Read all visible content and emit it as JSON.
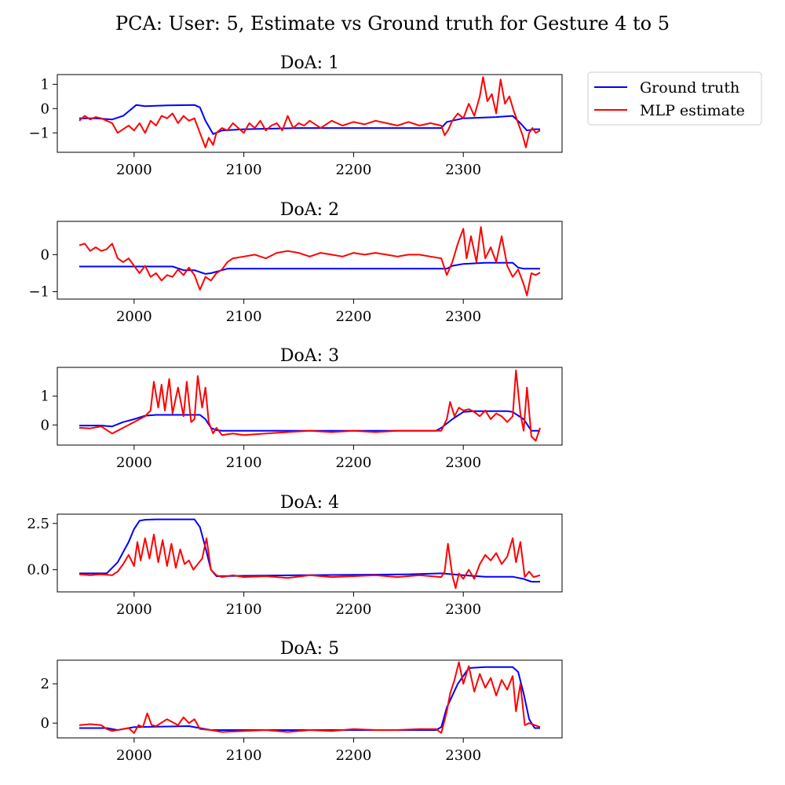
{
  "figure": {
    "suptitle": "PCA: User: 5, Estimate vs Ground truth for Gesture 4 to 5"
  },
  "legend": {
    "items": [
      {
        "label": "Ground truth",
        "color": "#0000ff"
      },
      {
        "label": "MLP estimate",
        "color": "#ff0000"
      }
    ],
    "placement": "outside-right-top"
  },
  "colors": {
    "ground_truth": "#0000ff",
    "estimate": "#ff0000",
    "axes": "#000000"
  },
  "chart_data": [
    {
      "type": "line",
      "title": "DoA: 1",
      "xlabel": "",
      "ylabel": "",
      "xlim": [
        1930,
        2390
      ],
      "ylim": [
        -1.8,
        1.4
      ],
      "xticks": [
        2000,
        2100,
        2200,
        2300
      ],
      "yticks": [
        1,
        0,
        -1
      ],
      "ytick_labels": [
        "1",
        "0",
        "−1"
      ],
      "grid": false,
      "series": [
        {
          "name": "Ground truth",
          "color": "#0000ff",
          "x": [
            1950,
            1965,
            1980,
            1990,
            1998,
            2002,
            2010,
            2030,
            2055,
            2060,
            2065,
            2072,
            2080,
            2100,
            2150,
            2200,
            2250,
            2280,
            2285,
            2300,
            2330,
            2345,
            2352,
            2358,
            2365,
            2370
          ],
          "y": [
            -0.4,
            -0.4,
            -0.45,
            -0.3,
            0.0,
            0.15,
            0.1,
            0.13,
            0.15,
            0.05,
            -0.5,
            -1.05,
            -0.9,
            -0.85,
            -0.8,
            -0.8,
            -0.8,
            -0.8,
            -0.55,
            -0.4,
            -0.35,
            -0.3,
            -0.6,
            -0.9,
            -0.85,
            -0.85
          ]
        },
        {
          "name": "MLP estimate",
          "color": "#ff0000",
          "x": [
            1950,
            1955,
            1960,
            1965,
            1970,
            1975,
            1980,
            1985,
            1990,
            1995,
            2000,
            2005,
            2010,
            2015,
            2020,
            2025,
            2030,
            2035,
            2040,
            2045,
            2050,
            2055,
            2060,
            2065,
            2068,
            2072,
            2075,
            2080,
            2085,
            2090,
            2095,
            2100,
            2105,
            2110,
            2115,
            2120,
            2125,
            2130,
            2135,
            2140,
            2145,
            2150,
            2155,
            2160,
            2170,
            2180,
            2190,
            2200,
            2210,
            2220,
            2230,
            2240,
            2250,
            2260,
            2270,
            2280,
            2283,
            2286,
            2290,
            2295,
            2300,
            2305,
            2310,
            2315,
            2318,
            2322,
            2326,
            2330,
            2334,
            2338,
            2342,
            2346,
            2350,
            2354,
            2357,
            2360,
            2363,
            2366,
            2370
          ],
          "y": [
            -0.5,
            -0.3,
            -0.45,
            -0.35,
            -0.4,
            -0.5,
            -0.6,
            -1.0,
            -0.85,
            -0.7,
            -0.9,
            -0.6,
            -1.0,
            -0.5,
            -0.7,
            -0.3,
            -0.4,
            -0.2,
            -0.6,
            -0.3,
            -0.5,
            -0.4,
            -1.0,
            -1.6,
            -1.2,
            -1.5,
            -1.0,
            -0.8,
            -0.9,
            -0.6,
            -0.8,
            -1.0,
            -0.6,
            -0.8,
            -0.5,
            -0.9,
            -0.7,
            -0.6,
            -0.9,
            -0.3,
            -0.8,
            -0.6,
            -0.7,
            -0.5,
            -0.8,
            -0.5,
            -0.7,
            -0.55,
            -0.65,
            -0.5,
            -0.6,
            -0.7,
            -0.55,
            -0.7,
            -0.6,
            -0.7,
            -1.1,
            -0.9,
            -0.5,
            -0.2,
            -0.4,
            0.2,
            -0.3,
            0.5,
            1.3,
            0.3,
            0.6,
            -0.2,
            1.2,
            0.2,
            0.5,
            -0.1,
            -0.6,
            -1.1,
            -1.6,
            -1.0,
            -0.8,
            -1.0,
            -0.9
          ]
        }
      ]
    },
    {
      "type": "line",
      "title": "DoA: 2",
      "xlabel": "",
      "ylabel": "",
      "xlim": [
        1930,
        2390
      ],
      "ylim": [
        -1.2,
        0.9
      ],
      "xticks": [
        2000,
        2100,
        2200,
        2300
      ],
      "yticks": [
        0,
        -1
      ],
      "ytick_labels": [
        "0",
        "−1"
      ],
      "grid": false,
      "series": [
        {
          "name": "Ground truth",
          "color": "#0000ff",
          "x": [
            1950,
            2000,
            2035,
            2045,
            2055,
            2065,
            2070,
            2080,
            2085,
            2100,
            2150,
            2200,
            2250,
            2285,
            2290,
            2300,
            2320,
            2345,
            2350,
            2355,
            2370
          ],
          "y": [
            -0.32,
            -0.32,
            -0.32,
            -0.42,
            -0.42,
            -0.52,
            -0.5,
            -0.42,
            -0.38,
            -0.38,
            -0.38,
            -0.38,
            -0.38,
            -0.38,
            -0.3,
            -0.25,
            -0.22,
            -0.22,
            -0.35,
            -0.38,
            -0.38
          ]
        },
        {
          "name": "MLP estimate",
          "color": "#ff0000",
          "x": [
            1950,
            1955,
            1960,
            1965,
            1970,
            1975,
            1980,
            1985,
            1990,
            1995,
            2000,
            2005,
            2010,
            2015,
            2020,
            2025,
            2030,
            2035,
            2040,
            2045,
            2050,
            2055,
            2060,
            2065,
            2070,
            2075,
            2080,
            2085,
            2090,
            2100,
            2110,
            2120,
            2130,
            2140,
            2150,
            2160,
            2170,
            2180,
            2190,
            2200,
            2210,
            2220,
            2230,
            2240,
            2250,
            2260,
            2270,
            2280,
            2285,
            2290,
            2295,
            2300,
            2303,
            2307,
            2312,
            2316,
            2320,
            2325,
            2330,
            2335,
            2340,
            2345,
            2350,
            2355,
            2358,
            2362,
            2366,
            2370
          ],
          "y": [
            0.25,
            0.3,
            0.1,
            0.2,
            0.1,
            0.15,
            0.3,
            -0.1,
            -0.2,
            -0.1,
            -0.3,
            -0.5,
            -0.3,
            -0.6,
            -0.5,
            -0.7,
            -0.55,
            -0.6,
            -0.4,
            -0.55,
            -0.35,
            -0.55,
            -0.95,
            -0.6,
            -0.7,
            -0.5,
            -0.4,
            -0.2,
            -0.1,
            -0.05,
            0.0,
            -0.1,
            0.05,
            0.1,
            0.05,
            -0.05,
            0.05,
            0.0,
            -0.05,
            0.05,
            0.0,
            0.05,
            0.0,
            -0.05,
            0.0,
            0.0,
            -0.05,
            -0.1,
            -0.55,
            -0.2,
            0.3,
            0.7,
            -0.1,
            0.5,
            -0.2,
            0.75,
            -0.1,
            0.2,
            -0.2,
            0.5,
            -0.3,
            -0.6,
            -0.4,
            -0.8,
            -1.1,
            -0.5,
            -0.55,
            -0.48
          ]
        }
      ]
    },
    {
      "type": "line",
      "title": "DoA: 3",
      "xlabel": "",
      "ylabel": "",
      "xlim": [
        1930,
        2390
      ],
      "ylim": [
        -0.7,
        2.0
      ],
      "xticks": [
        2000,
        2100,
        2200,
        2300
      ],
      "yticks": [
        1,
        0
      ],
      "ytick_labels": [
        "1",
        "0"
      ],
      "grid": false,
      "series": [
        {
          "name": "Ground truth",
          "color": "#0000ff",
          "x": [
            1950,
            1970,
            1980,
            1990,
            2000,
            2010,
            2020,
            2040,
            2060,
            2065,
            2070,
            2075,
            2080,
            2100,
            2150,
            2200,
            2250,
            2275,
            2280,
            2290,
            2300,
            2310,
            2340,
            2345,
            2355,
            2362,
            2370
          ],
          "y": [
            -0.02,
            -0.02,
            -0.05,
            0.1,
            0.2,
            0.32,
            0.35,
            0.35,
            0.35,
            0.2,
            -0.1,
            -0.18,
            -0.2,
            -0.2,
            -0.2,
            -0.2,
            -0.2,
            -0.2,
            -0.1,
            0.2,
            0.45,
            0.48,
            0.48,
            0.45,
            0.2,
            -0.2,
            -0.2
          ]
        },
        {
          "name": "MLP estimate",
          "color": "#ff0000",
          "x": [
            1950,
            1960,
            1970,
            1980,
            1985,
            1990,
            1995,
            2000,
            2005,
            2010,
            2015,
            2018,
            2022,
            2025,
            2028,
            2032,
            2035,
            2040,
            2045,
            2048,
            2052,
            2055,
            2058,
            2062,
            2065,
            2068,
            2072,
            2075,
            2080,
            2090,
            2100,
            2120,
            2140,
            2160,
            2180,
            2200,
            2220,
            2240,
            2260,
            2280,
            2285,
            2288,
            2292,
            2296,
            2300,
            2305,
            2310,
            2315,
            2320,
            2325,
            2330,
            2335,
            2340,
            2345,
            2348,
            2352,
            2355,
            2358,
            2362,
            2366,
            2370
          ],
          "y": [
            -0.1,
            -0.12,
            -0.05,
            -0.3,
            -0.2,
            -0.1,
            0.0,
            0.1,
            0.2,
            0.3,
            0.5,
            1.5,
            0.6,
            1.4,
            0.5,
            1.6,
            0.4,
            1.3,
            0.3,
            1.5,
            0.1,
            0.2,
            1.7,
            0.6,
            1.3,
            0.1,
            -0.3,
            -0.1,
            -0.35,
            -0.3,
            -0.35,
            -0.3,
            -0.25,
            -0.2,
            -0.25,
            -0.2,
            -0.25,
            -0.2,
            -0.2,
            -0.2,
            0.2,
            0.8,
            0.3,
            0.6,
            0.5,
            0.55,
            0.45,
            0.3,
            0.5,
            0.2,
            0.4,
            0.3,
            0.1,
            0.3,
            1.9,
            0.4,
            -0.2,
            1.3,
            -0.4,
            -0.55,
            -0.1
          ]
        }
      ]
    },
    {
      "type": "line",
      "title": "DoA: 4",
      "xlabel": "",
      "ylabel": "",
      "xlim": [
        1930,
        2390
      ],
      "ylim": [
        -1.2,
        3.0
      ],
      "xticks": [
        2000,
        2100,
        2200,
        2300
      ],
      "yticks": [
        2.5,
        0.0
      ],
      "ytick_labels": [
        "2.5",
        "0.0"
      ],
      "grid": false,
      "series": [
        {
          "name": "Ground truth",
          "color": "#0000ff",
          "x": [
            1950,
            1975,
            1985,
            1995,
            2000,
            2005,
            2010,
            2020,
            2055,
            2060,
            2065,
            2070,
            2075,
            2100,
            2150,
            2200,
            2250,
            2280,
            2300,
            2320,
            2345,
            2355,
            2362,
            2370
          ],
          "y": [
            -0.2,
            -0.2,
            0.4,
            1.5,
            2.2,
            2.65,
            2.7,
            2.72,
            2.72,
            2.3,
            1.2,
            0.0,
            -0.35,
            -0.33,
            -0.3,
            -0.28,
            -0.25,
            -0.2,
            -0.3,
            -0.38,
            -0.38,
            -0.5,
            -0.65,
            -0.65
          ]
        },
        {
          "name": "MLP estimate",
          "color": "#ff0000",
          "x": [
            1950,
            1960,
            1970,
            1980,
            1985,
            1990,
            1995,
            2000,
            2003,
            2006,
            2010,
            2014,
            2018,
            2022,
            2026,
            2030,
            2034,
            2038,
            2042,
            2046,
            2050,
            2054,
            2058,
            2062,
            2066,
            2070,
            2075,
            2080,
            2090,
            2100,
            2120,
            2140,
            2160,
            2180,
            2200,
            2220,
            2240,
            2260,
            2280,
            2283,
            2286,
            2290,
            2293,
            2296,
            2300,
            2305,
            2310,
            2315,
            2320,
            2325,
            2330,
            2335,
            2340,
            2345,
            2348,
            2352,
            2356,
            2360,
            2364,
            2370
          ],
          "y": [
            -0.25,
            -0.3,
            -0.25,
            -0.3,
            -0.1,
            0.3,
            0.8,
            0.2,
            1.5,
            0.5,
            1.7,
            0.6,
            1.9,
            0.4,
            1.6,
            0.2,
            1.4,
            0.1,
            1.1,
            0.3,
            0.5,
            0.0,
            0.3,
            0.6,
            1.7,
            0.0,
            -0.3,
            -0.4,
            -0.3,
            -0.4,
            -0.35,
            -0.45,
            -0.3,
            -0.4,
            -0.35,
            -0.3,
            -0.4,
            -0.3,
            -0.4,
            -0.1,
            1.4,
            -0.3,
            -1.0,
            -0.2,
            -0.5,
            0.0,
            -0.5,
            0.3,
            0.8,
            0.5,
            0.9,
            0.3,
            0.7,
            1.7,
            0.4,
            1.5,
            -0.4,
            -0.1,
            -0.4,
            -0.3
          ]
        }
      ]
    },
    {
      "type": "line",
      "title": "DoA: 5",
      "xlabel": "",
      "ylabel": "",
      "xlim": [
        1930,
        2390
      ],
      "ylim": [
        -0.75,
        3.2
      ],
      "xticks": [
        2000,
        2100,
        2200,
        2300
      ],
      "yticks": [
        2,
        0
      ],
      "ytick_labels": [
        "2",
        "0"
      ],
      "grid": false,
      "series": [
        {
          "name": "Ground truth",
          "color": "#0000ff",
          "x": [
            1950,
            1975,
            1985,
            2000,
            2050,
            2070,
            2100,
            2150,
            2200,
            2250,
            2275,
            2280,
            2285,
            2295,
            2305,
            2320,
            2345,
            2350,
            2355,
            2360,
            2365,
            2370
          ],
          "y": [
            -0.25,
            -0.25,
            -0.35,
            -0.2,
            -0.15,
            -0.35,
            -0.35,
            -0.35,
            -0.35,
            -0.35,
            -0.35,
            -0.2,
            0.8,
            2.0,
            2.8,
            2.85,
            2.85,
            2.6,
            1.5,
            0.2,
            -0.25,
            -0.25
          ]
        },
        {
          "name": "MLP estimate",
          "color": "#ff0000",
          "x": [
            1950,
            1960,
            1970,
            1975,
            1980,
            1990,
            1995,
            2000,
            2004,
            2008,
            2012,
            2016,
            2020,
            2030,
            2040,
            2045,
            2050,
            2055,
            2060,
            2070,
            2080,
            2100,
            2120,
            2140,
            2160,
            2180,
            2200,
            2220,
            2240,
            2260,
            2275,
            2280,
            2285,
            2288,
            2292,
            2296,
            2300,
            2305,
            2310,
            2315,
            2320,
            2325,
            2330,
            2335,
            2340,
            2345,
            2348,
            2352,
            2356,
            2360,
            2365,
            2370
          ],
          "y": [
            -0.1,
            -0.05,
            -0.1,
            -0.3,
            -0.4,
            -0.3,
            -0.25,
            -0.5,
            -0.1,
            -0.2,
            0.5,
            -0.1,
            -0.15,
            0.2,
            -0.1,
            0.3,
            0.0,
            0.2,
            -0.3,
            -0.35,
            -0.45,
            -0.4,
            -0.35,
            -0.45,
            -0.35,
            -0.4,
            -0.3,
            -0.35,
            -0.35,
            -0.3,
            -0.3,
            -0.5,
            0.6,
            1.5,
            2.2,
            3.1,
            2.0,
            2.9,
            1.6,
            2.5,
            1.8,
            2.3,
            1.4,
            2.2,
            1.7,
            2.4,
            0.6,
            2.0,
            -0.1,
            0.0,
            -0.1,
            -0.2
          ]
        }
      ]
    }
  ]
}
